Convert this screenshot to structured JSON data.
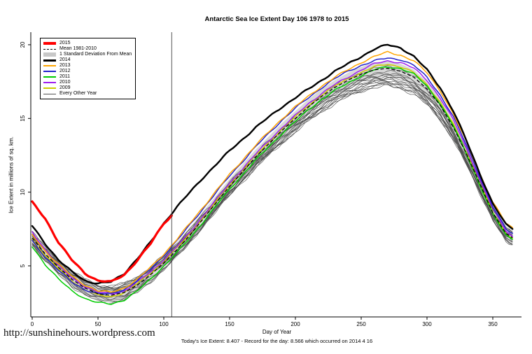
{
  "footer": {
    "url": "http://sunshinehours.wordpress.com",
    "status": "Today's Ice Extent: 8.407  - Record for the day: 8.566 which occurred on 2014 4 16"
  },
  "chart_data": {
    "type": "line",
    "title": "Antarctic Sea Ice Extent Day 106 1978 to 2015",
    "xlabel": "Day of Year",
    "ylabel": "Ice Extent in millions of sq. km.",
    "xlim": [
      0,
      365
    ],
    "ylim": [
      1.5,
      21
    ],
    "xticks": [
      0,
      50,
      100,
      150,
      200,
      250,
      300,
      350
    ],
    "yticks": [
      5,
      10,
      15,
      20
    ],
    "grid": false,
    "legend_position": "top-left",
    "marker": {
      "day": 106,
      "today_extent": 8.407,
      "record_extent": 8.566,
      "record_date": "2014 4 16"
    },
    "x": [
      0,
      10,
      20,
      30,
      40,
      50,
      60,
      70,
      80,
      90,
      100,
      110,
      120,
      130,
      140,
      150,
      160,
      170,
      180,
      190,
      200,
      210,
      220,
      230,
      240,
      250,
      260,
      270,
      280,
      290,
      300,
      310,
      320,
      330,
      340,
      350,
      360,
      365
    ],
    "mean_1981_2010": {
      "label": "Mean 1981-2010",
      "values": [
        6.9,
        5.8,
        4.9,
        4.1,
        3.5,
        3.1,
        3.0,
        3.2,
        3.7,
        4.4,
        5.2,
        6.1,
        7.1,
        8.2,
        9.3,
        10.4,
        11.4,
        12.4,
        13.3,
        14.2,
        15.0,
        15.8,
        16.5,
        17.1,
        17.6,
        18.0,
        18.3,
        18.4,
        18.2,
        17.8,
        17.0,
        15.9,
        14.4,
        12.6,
        10.6,
        8.6,
        7.2,
        6.9
      ]
    },
    "std_dev": 0.5,
    "series": [
      {
        "name": "2015",
        "color": "#FF0000",
        "x": [
          0,
          10,
          20,
          30,
          40,
          50,
          60,
          70,
          80,
          90,
          100,
          106
        ],
        "values": [
          9.3,
          8.2,
          6.6,
          5.4,
          4.5,
          4.0,
          3.9,
          4.4,
          5.4,
          6.5,
          7.9,
          8.407
        ]
      },
      {
        "name": "2014",
        "color": "#000000",
        "values": [
          7.7,
          6.5,
          5.4,
          4.6,
          4.0,
          3.8,
          3.9,
          4.5,
          5.5,
          6.6,
          7.9,
          9.0,
          10.0,
          11.0,
          11.9,
          12.8,
          13.6,
          14.4,
          15.1,
          15.8,
          16.4,
          17.0,
          17.6,
          18.2,
          18.7,
          19.2,
          19.7,
          20.0,
          19.8,
          19.2,
          18.3,
          17.1,
          15.5,
          13.5,
          11.3,
          9.2,
          7.8,
          7.5
        ]
      },
      {
        "name": "2013",
        "color": "#FFA500",
        "values": [
          7.1,
          6.0,
          5.1,
          4.3,
          3.7,
          3.3,
          3.2,
          3.5,
          4.1,
          4.9,
          5.8,
          6.8,
          7.9,
          9.0,
          10.1,
          11.2,
          12.2,
          13.2,
          14.1,
          15.0,
          15.8,
          16.5,
          17.2,
          17.8,
          18.3,
          18.8,
          19.2,
          19.5,
          19.3,
          18.9,
          18.1,
          16.9,
          15.3,
          13.4,
          11.3,
          9.3,
          7.9,
          7.6
        ]
      },
      {
        "name": "2012",
        "color": "#2222CC",
        "values": [
          6.7,
          5.6,
          4.7,
          3.9,
          3.4,
          3.1,
          3.1,
          3.4,
          4.0,
          4.8,
          5.7,
          6.7,
          7.8,
          8.9,
          10.0,
          11.1,
          12.1,
          13.1,
          14.0,
          14.9,
          15.7,
          16.4,
          17.1,
          17.7,
          18.2,
          18.6,
          18.9,
          19.1,
          19.0,
          18.6,
          17.8,
          16.6,
          15.1,
          13.2,
          11.1,
          9.0,
          7.5,
          7.2
        ]
      },
      {
        "name": "2011",
        "color": "#00CC00",
        "values": [
          6.3,
          5.1,
          4.1,
          3.3,
          2.8,
          2.5,
          2.4,
          2.7,
          3.3,
          4.1,
          5.0,
          5.9,
          6.9,
          8.0,
          9.1,
          10.2,
          11.2,
          12.2,
          13.1,
          14.0,
          14.8,
          15.6,
          16.3,
          16.9,
          17.4,
          17.9,
          18.3,
          18.5,
          18.4,
          18.0,
          17.2,
          16.0,
          14.5,
          12.6,
          10.5,
          8.5,
          7.1,
          6.8
        ]
      },
      {
        "name": "2010",
        "color": "#A020F0",
        "values": [
          7.3,
          6.1,
          5.0,
          4.2,
          3.6,
          3.2,
          3.1,
          3.3,
          3.9,
          4.6,
          5.4,
          6.3,
          7.3,
          8.4,
          9.5,
          10.6,
          11.6,
          12.6,
          13.5,
          14.4,
          15.2,
          16.0,
          16.7,
          17.3,
          17.8,
          18.3,
          18.7,
          18.9,
          18.8,
          18.4,
          17.6,
          16.4,
          14.9,
          13.0,
          10.9,
          8.9,
          7.4,
          7.0
        ]
      },
      {
        "name": "2009",
        "color": "#CDCD00",
        "values": [
          6.8,
          5.7,
          4.8,
          4.0,
          3.4,
          3.0,
          2.9,
          3.2,
          3.8,
          4.5,
          5.3,
          6.2,
          7.2,
          8.3,
          9.4,
          10.5,
          11.5,
          12.5,
          13.4,
          14.3,
          15.1,
          15.9,
          16.6,
          17.2,
          17.7,
          18.1,
          18.5,
          18.7,
          18.5,
          18.1,
          17.3,
          16.1,
          14.6,
          12.7,
          10.6,
          8.6,
          7.2,
          6.9
        ]
      }
    ],
    "background_years": {
      "label": "Every Other Year",
      "color": "#4A4A4A",
      "years": [
        {
          "year": 1978,
          "min_offset": 0.5,
          "peak_offset": -0.9
        },
        {
          "year": 1980,
          "min_offset": -0.2,
          "peak_offset": -1.1
        },
        {
          "year": 1982,
          "min_offset": 0.6,
          "peak_offset": -0.4
        },
        {
          "year": 1984,
          "min_offset": -0.4,
          "peak_offset": -0.7
        },
        {
          "year": 1986,
          "min_offset": 0.2,
          "peak_offset": -1.0
        },
        {
          "year": 1988,
          "min_offset": 0.4,
          "peak_offset": -0.5
        },
        {
          "year": 1990,
          "min_offset": -0.3,
          "peak_offset": -0.8
        },
        {
          "year": 1992,
          "min_offset": 0.1,
          "peak_offset": -1.2
        },
        {
          "year": 1994,
          "min_offset": 0.5,
          "peak_offset": -0.6
        },
        {
          "year": 1996,
          "min_offset": -0.1,
          "peak_offset": -0.9
        },
        {
          "year": 1998,
          "min_offset": 0.3,
          "peak_offset": -0.7
        },
        {
          "year": 2000,
          "min_offset": -0.5,
          "peak_offset": -0.3
        },
        {
          "year": 2002,
          "min_offset": 0.2,
          "peak_offset": -1.1
        },
        {
          "year": 2004,
          "min_offset": 0.6,
          "peak_offset": -0.2
        },
        {
          "year": 2006,
          "min_offset": -0.2,
          "peak_offset": -0.5
        },
        {
          "year": 2008,
          "min_offset": 0.4,
          "peak_offset": 0.1
        }
      ]
    },
    "legend": [
      {
        "label": "2015",
        "swatch": "line",
        "color": "#FF0000",
        "thickness": 4
      },
      {
        "label": "Mean 1981-2010",
        "swatch": "dashed",
        "color": "#000000",
        "thickness": 1
      },
      {
        "label": "1 Standard Deviation From Mean",
        "swatch": "box",
        "color": "#C8C8C8",
        "thickness": 6
      },
      {
        "label": "2014",
        "swatch": "line",
        "color": "#000000",
        "thickness": 3
      },
      {
        "label": "2013",
        "swatch": "line",
        "color": "#FFA500",
        "thickness": 2
      },
      {
        "label": "2012",
        "swatch": "line",
        "color": "#2222CC",
        "thickness": 2
      },
      {
        "label": "2011",
        "swatch": "line",
        "color": "#00CC00",
        "thickness": 2
      },
      {
        "label": "2010",
        "swatch": "line",
        "color": "#A020F0",
        "thickness": 2
      },
      {
        "label": "2009",
        "swatch": "line",
        "color": "#CDCD00",
        "thickness": 2
      },
      {
        "label": "Every Other Year",
        "swatch": "line",
        "color": "#555555",
        "thickness": 1
      }
    ]
  }
}
